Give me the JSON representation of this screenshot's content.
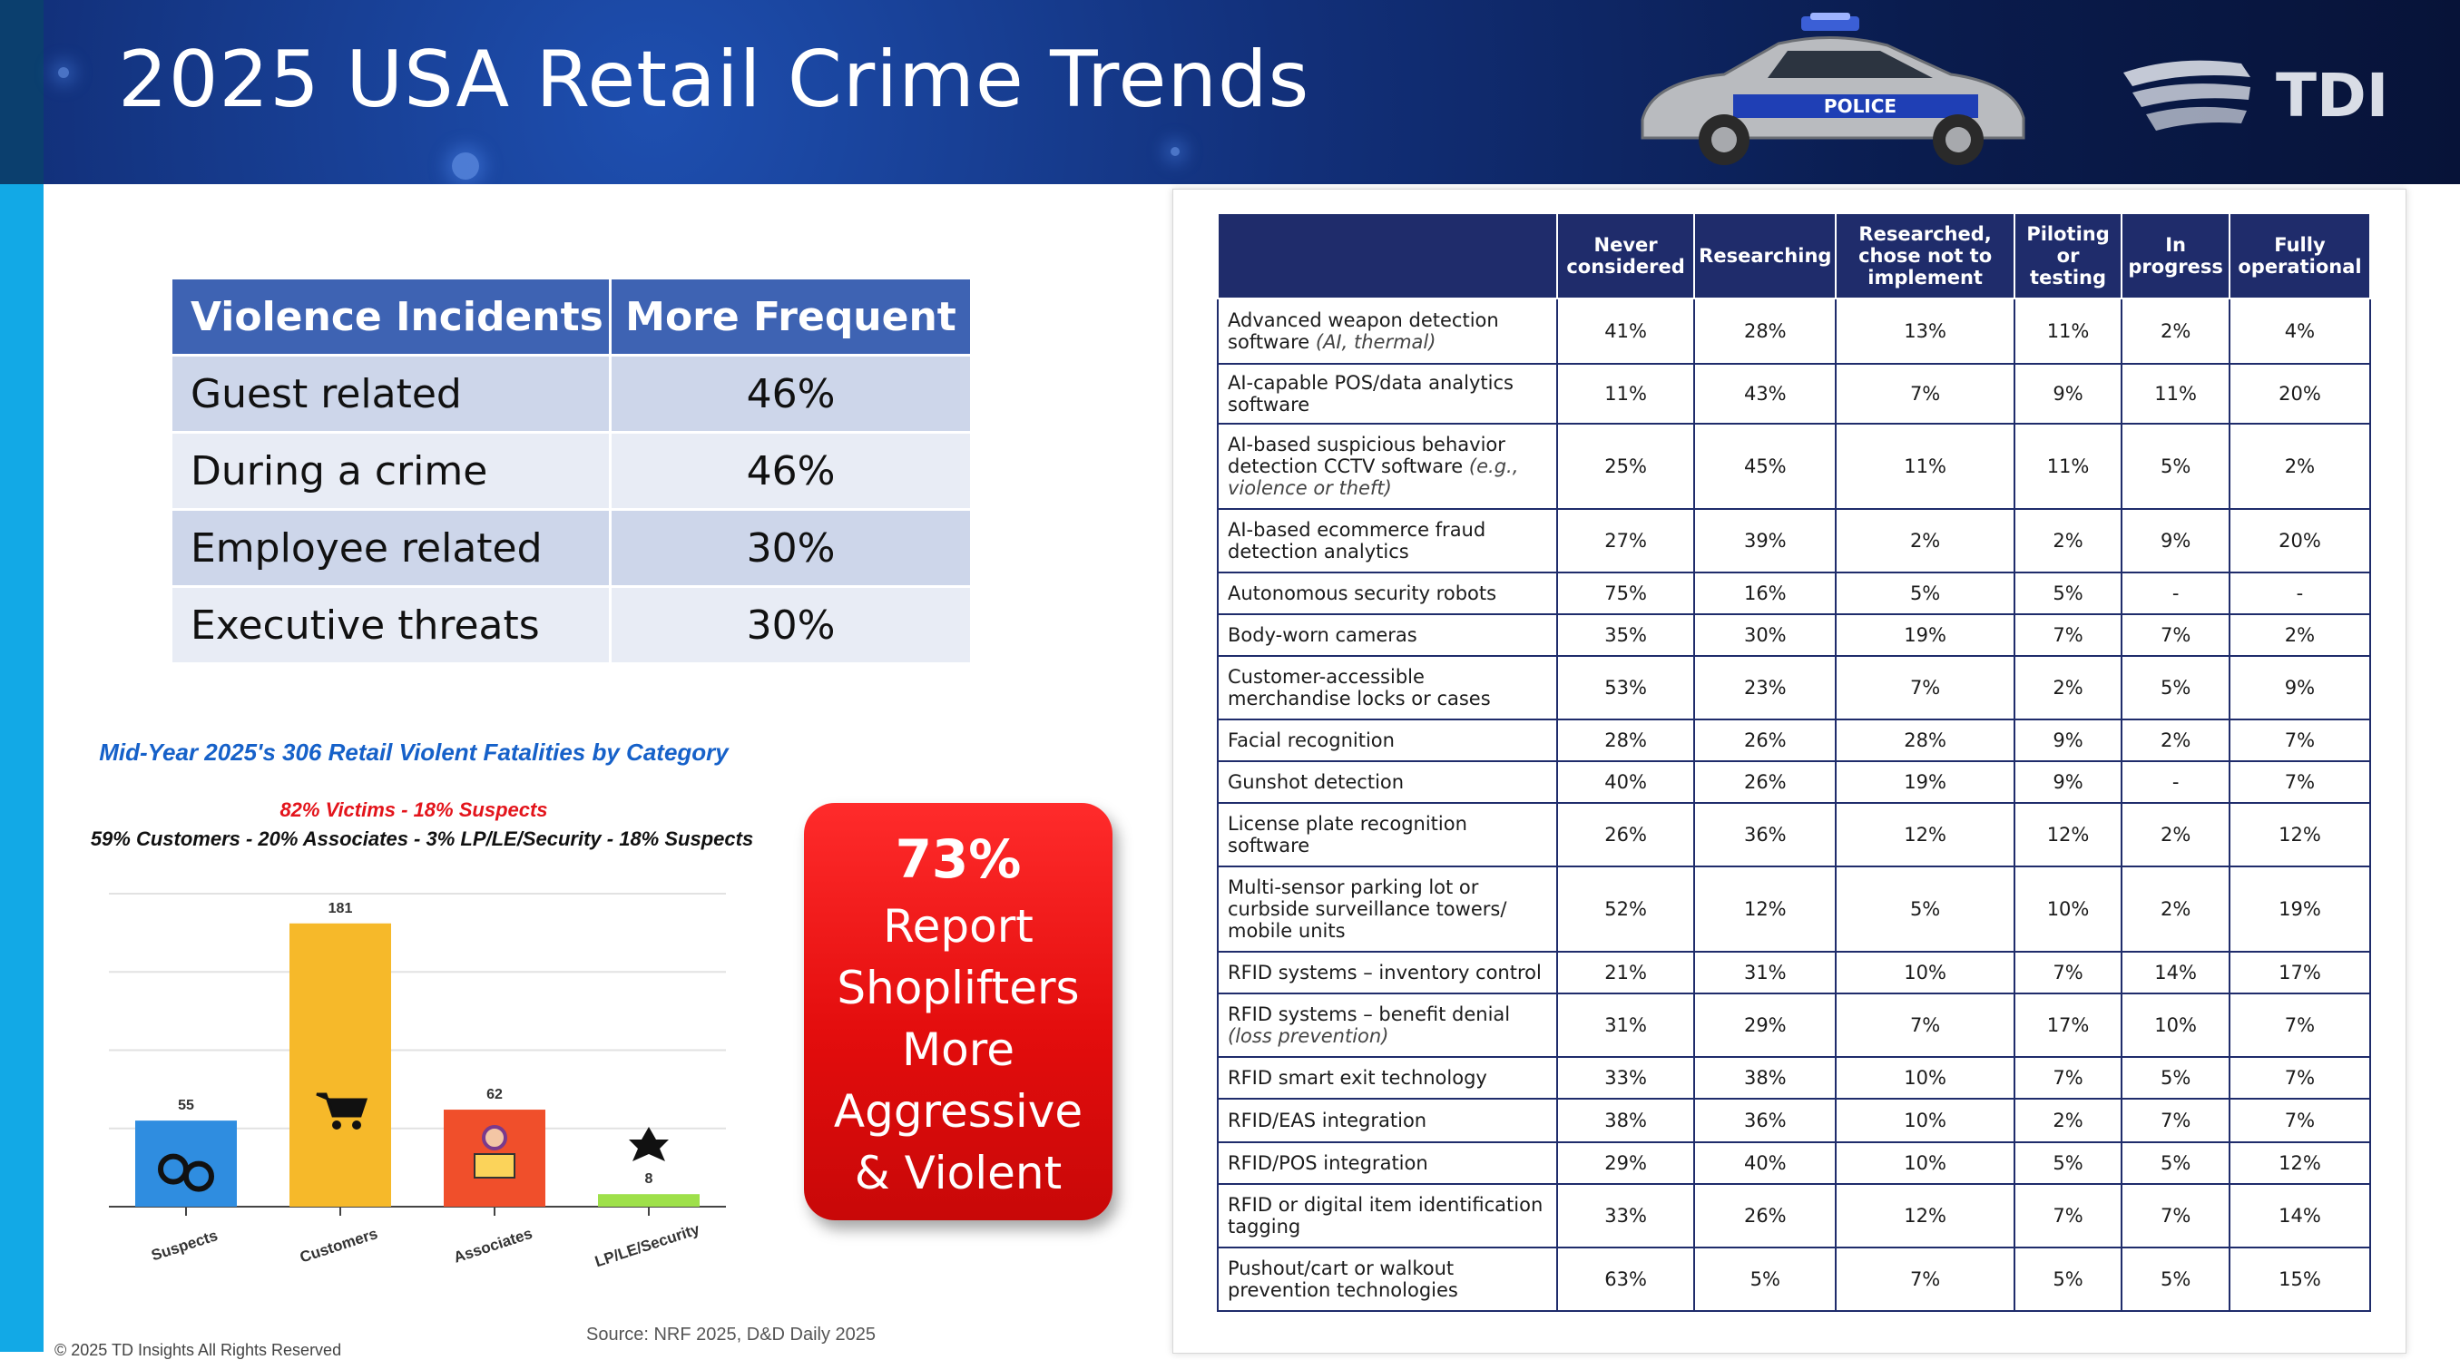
{
  "header": {
    "title": "2025 USA Retail Crime Trends",
    "logo_text": "TDI",
    "car_text": "POLICE"
  },
  "violence_table": {
    "headers": [
      "Violence Incidents",
      "More Frequent"
    ],
    "rows": [
      {
        "label": "Guest related",
        "value": "46%"
      },
      {
        "label": "During a crime",
        "value": "46%"
      },
      {
        "label": "Employee related",
        "value": "30%"
      },
      {
        "label": "Executive threats",
        "value": "30%"
      }
    ]
  },
  "fatalities": {
    "title": "Mid-Year 2025's 306 Retail Violent Fatalities by Category",
    "victims_line": "82% Victims - 18% Suspects",
    "breakdown_line": "59% Customers - 20% Associates - 3% LP/LE/Security - 18% Suspects"
  },
  "chart_data": {
    "type": "bar",
    "categories": [
      "Suspects",
      "Customers",
      "Associates",
      "LP/LE/Security"
    ],
    "values": [
      55,
      181,
      62,
      8
    ],
    "colors": [
      "#2f8de0",
      "#f6b92a",
      "#f04f2b",
      "#9ee04a"
    ],
    "icons": [
      "handcuffs-icon",
      "shopping-cart-icon",
      "cashier-icon",
      "badge-icon"
    ],
    "ylim": [
      0,
      200
    ],
    "grid": true
  },
  "callout": {
    "pct": "73%",
    "lines": [
      "Report",
      "Shoplifters",
      "More",
      "Aggressive",
      "& Violent"
    ]
  },
  "source": "Source: NRF 2025, D&D Daily 2025",
  "copyright": "© 2025 TD Insights All Rights Reserved",
  "adoption_table": {
    "columns": [
      "Never considered",
      "Researching",
      "Researched, chose not to implement",
      "Piloting or testing",
      "In progress",
      "Fully operational"
    ],
    "rows": [
      {
        "label": "Advanced weapon detection software",
        "sub": "(AI, thermal)",
        "values": [
          "41%",
          "28%",
          "13%",
          "11%",
          "2%",
          "4%"
        ]
      },
      {
        "label": "AI-capable POS/data analytics software",
        "values": [
          "11%",
          "43%",
          "7%",
          "9%",
          "11%",
          "20%"
        ]
      },
      {
        "label": "AI-based suspicious behavior detection CCTV software",
        "sub": "(e.g., violence or theft)",
        "values": [
          "25%",
          "45%",
          "11%",
          "11%",
          "5%",
          "2%"
        ]
      },
      {
        "label": "AI-based ecommerce fraud detection analytics",
        "values": [
          "27%",
          "39%",
          "2%",
          "2%",
          "9%",
          "20%"
        ]
      },
      {
        "label": "Autonomous security robots",
        "values": [
          "75%",
          "16%",
          "5%",
          "5%",
          "-",
          "-"
        ]
      },
      {
        "label": "Body-worn cameras",
        "values": [
          "35%",
          "30%",
          "19%",
          "7%",
          "7%",
          "2%"
        ]
      },
      {
        "label": "Customer-accessible merchandise locks or cases",
        "values": [
          "53%",
          "23%",
          "7%",
          "2%",
          "5%",
          "9%"
        ]
      },
      {
        "label": "Facial recognition",
        "values": [
          "28%",
          "26%",
          "28%",
          "9%",
          "2%",
          "7%"
        ]
      },
      {
        "label": "Gunshot detection",
        "values": [
          "40%",
          "26%",
          "19%",
          "9%",
          "-",
          "7%"
        ]
      },
      {
        "label": "License plate recognition software",
        "values": [
          "26%",
          "36%",
          "12%",
          "12%",
          "2%",
          "12%"
        ]
      },
      {
        "label": "Multi-sensor parking lot or curbside surveillance towers/ mobile units",
        "values": [
          "52%",
          "12%",
          "5%",
          "10%",
          "2%",
          "19%"
        ]
      },
      {
        "label": "RFID systems – inventory control",
        "values": [
          "21%",
          "31%",
          "10%",
          "7%",
          "14%",
          "17%"
        ]
      },
      {
        "label": "RFID systems – benefit denial",
        "sub": "(loss prevention)",
        "values": [
          "31%",
          "29%",
          "7%",
          "17%",
          "10%",
          "7%"
        ]
      },
      {
        "label": "RFID smart exit technology",
        "values": [
          "33%",
          "38%",
          "10%",
          "7%",
          "5%",
          "7%"
        ]
      },
      {
        "label": "RFID/EAS integration",
        "values": [
          "38%",
          "36%",
          "10%",
          "2%",
          "7%",
          "7%"
        ]
      },
      {
        "label": "RFID/POS integration",
        "values": [
          "29%",
          "40%",
          "10%",
          "5%",
          "5%",
          "12%"
        ]
      },
      {
        "label": "RFID or digital item identification tagging",
        "values": [
          "33%",
          "26%",
          "12%",
          "7%",
          "7%",
          "14%"
        ]
      },
      {
        "label": "Pushout/cart or walkout prevention technologies",
        "values": [
          "63%",
          "5%",
          "7%",
          "5%",
          "5%",
          "15%"
        ]
      }
    ]
  }
}
